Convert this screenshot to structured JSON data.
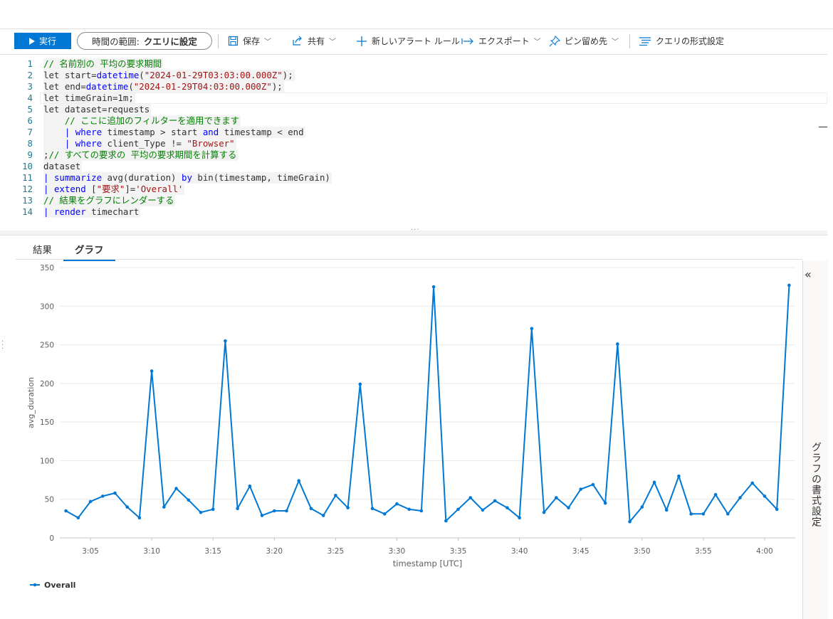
{
  "toolbar": {
    "run_label": "実行",
    "time_range_label": "時間の範囲:",
    "time_range_value": "クエリに設定",
    "save_label": "保存",
    "share_label": "共有",
    "new_alert_label": "新しいアラート ルール",
    "export_label": "エクスポート",
    "pin_label": "ピン留め先",
    "format_query_label": "クエリの形式設定"
  },
  "editor": {
    "lines": [
      {
        "n": "1",
        "code": "// 名前別の 平均の要求期間"
      },
      {
        "n": "2",
        "code": "let start=datetime(\"2024-01-29T03:03:00.000Z\");"
      },
      {
        "n": "3",
        "code": "let end=datetime(\"2024-01-29T04:03:00.000Z\");"
      },
      {
        "n": "4",
        "code": "let timeGrain=1m;"
      },
      {
        "n": "5",
        "code": "let dataset=requests"
      },
      {
        "n": "6",
        "code": "    // ここに追加のフィルターを適用できます"
      },
      {
        "n": "7",
        "code": "    | where timestamp > start and timestamp < end"
      },
      {
        "n": "8",
        "code": "    | where client_Type != \"Browser\""
      },
      {
        "n": "9",
        "code": ";// すべての要求の 平均の要求期間を計算する"
      },
      {
        "n": "10",
        "code": "dataset"
      },
      {
        "n": "11",
        "code": "| summarize avg(duration) by bin(timestamp, timeGrain)"
      },
      {
        "n": "12",
        "code": "| extend [\"要求\"]='Overall'"
      },
      {
        "n": "13",
        "code": "// 結果をグラフにレンダーする"
      },
      {
        "n": "14",
        "code": "| render timechart"
      }
    ]
  },
  "results_tabs": [
    {
      "label": "結果",
      "active": false
    },
    {
      "label": "グラフ",
      "active": true
    }
  ],
  "side_panel": {
    "label": "グラフの書式設定"
  },
  "chart_data": {
    "type": "line",
    "xlabel": "timestamp [UTC]",
    "ylabel": "avg_duration",
    "ylim": [
      0,
      350
    ],
    "yticks": [
      0,
      50,
      100,
      150,
      200,
      250,
      300,
      350
    ],
    "xtick_labels": [
      "3:05",
      "3:10",
      "3:15",
      "3:20",
      "3:25",
      "3:30",
      "3:35",
      "3:40",
      "3:45",
      "3:50",
      "3:55",
      "4:00"
    ],
    "xtick_minutes": [
      2,
      7,
      12,
      17,
      22,
      27,
      32,
      37,
      42,
      47,
      52,
      57
    ],
    "x_start": "3:03",
    "x_minutes_span": [
      -0.5,
      59.5
    ],
    "grid": "horizontal",
    "legend": "bottom-left",
    "color": "#0078d4",
    "series": [
      {
        "name": "Overall",
        "values": [
          35,
          26,
          47,
          54,
          58,
          40,
          26,
          216,
          40,
          64,
          49,
          33,
          37,
          255,
          38,
          67,
          29,
          35,
          35,
          74,
          38,
          29,
          55,
          39,
          199,
          38,
          31,
          44,
          37,
          35,
          325,
          22,
          37,
          52,
          36,
          48,
          39,
          26,
          271,
          33,
          52,
          39,
          63,
          69,
          45,
          251,
          21,
          40,
          72,
          36,
          80,
          31,
          31,
          56,
          31,
          52,
          71,
          54,
          37,
          327
        ]
      }
    ]
  }
}
